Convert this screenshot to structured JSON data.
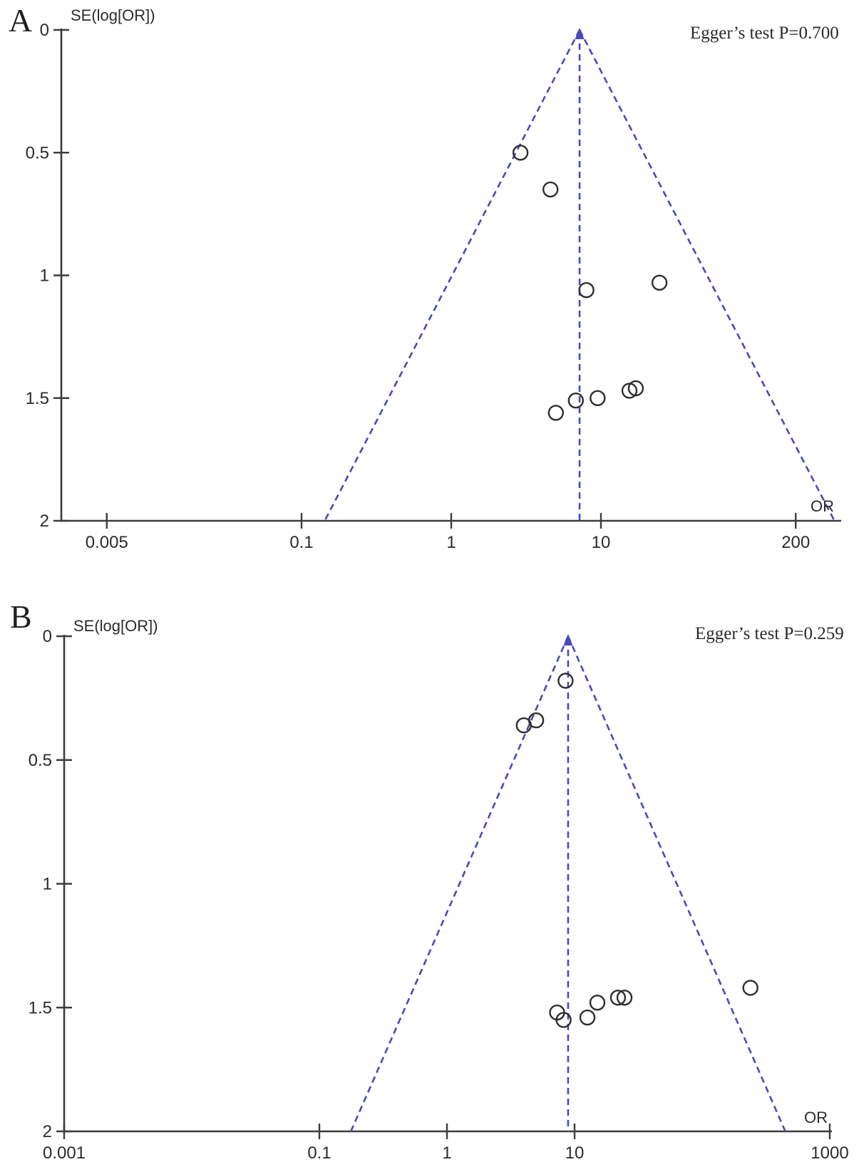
{
  "colors": {
    "background": "#ffffff",
    "funnel_line": "#4a49bd",
    "axis": "#3d3d3d",
    "point_stroke": "#2e2e2e",
    "text": "#2b2b2b"
  },
  "chart_data": [
    {
      "type": "scatter",
      "subtype": "funnel-plot",
      "panel_label": "A",
      "annotation": "Egger’s test P=0.700",
      "ylabel": "SE(log[OR])",
      "xlabel": "OR",
      "x_scale": "log10",
      "xlim": [
        0.0025,
        400
      ],
      "ylim": [
        0,
        2
      ],
      "y_axis_inverted": true,
      "grid": false,
      "x_tick_labels": [
        "0.005",
        "0.1",
        "1",
        "10",
        "200"
      ],
      "x_tick_values": [
        0.005,
        0.1,
        1,
        10,
        200
      ],
      "y_tick_labels": [
        "0",
        "0.5",
        "1",
        "1.5",
        "2"
      ],
      "y_tick_values": [
        0,
        0.5,
        1,
        1.5,
        2
      ],
      "pooled_or": 7.2,
      "funnel_rule": "pooled log(OR) ± 1.96·SE, dashed",
      "points": [
        {
          "or": 2.9,
          "se": 0.5
        },
        {
          "or": 4.6,
          "se": 0.65
        },
        {
          "or": 8.0,
          "se": 1.06
        },
        {
          "or": 24.6,
          "se": 1.03
        },
        {
          "or": 5.0,
          "se": 1.56
        },
        {
          "or": 6.8,
          "se": 1.51
        },
        {
          "or": 9.5,
          "se": 1.5
        },
        {
          "or": 15.5,
          "se": 1.47
        },
        {
          "or": 17.1,
          "se": 1.46
        }
      ]
    },
    {
      "type": "scatter",
      "subtype": "funnel-plot",
      "panel_label": "B",
      "annotation": "Egger’s test P=0.259",
      "ylabel": "SE(log[OR])",
      "xlabel": "OR",
      "x_scale": "log10",
      "xlim": [
        0.001,
        1040
      ],
      "ylim": [
        0,
        2
      ],
      "y_axis_inverted": true,
      "grid": false,
      "x_tick_labels": [
        "0.001",
        "0.1",
        "1",
        "10",
        "1000"
      ],
      "x_tick_values": [
        0.001,
        0.1,
        1,
        10,
        1000
      ],
      "y_tick_labels": [
        "0",
        "0.5",
        "1",
        "1.5",
        "2"
      ],
      "y_tick_values": [
        0,
        0.5,
        1,
        1.5,
        2
      ],
      "pooled_or": 8.9,
      "funnel_rule": "pooled log(OR) ± 1.96·SE, dashed",
      "points": [
        {
          "or": 8.5,
          "se": 0.18
        },
        {
          "or": 4.0,
          "se": 0.36
        },
        {
          "or": 5.0,
          "se": 0.34
        },
        {
          "or": 7.3,
          "se": 1.52
        },
        {
          "or": 8.2,
          "se": 1.55
        },
        {
          "or": 12.6,
          "se": 1.54
        },
        {
          "or": 15.1,
          "se": 1.48
        },
        {
          "or": 21.9,
          "se": 1.46
        },
        {
          "or": 24.6,
          "se": 1.46
        },
        {
          "or": 239,
          "se": 1.42
        }
      ]
    }
  ]
}
